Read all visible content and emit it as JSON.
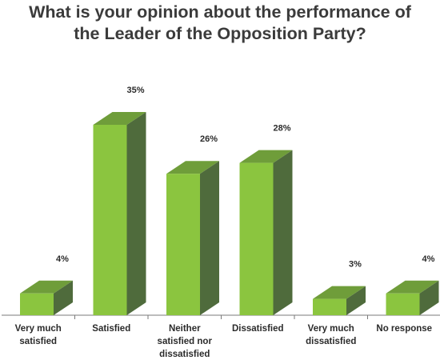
{
  "chart_data": {
    "type": "bar",
    "title_lines": [
      "What is your opinion about the performance of",
      "the Leader of the Opposition Party?"
    ],
    "categories": [
      [
        "Very much",
        "satisfied"
      ],
      [
        "Satisfied"
      ],
      [
        "Neither",
        "satisfied nor",
        "dissatisfied"
      ],
      [
        "Dissatisfied"
      ],
      [
        "Very much",
        "dissatisfied"
      ],
      [
        "No response"
      ]
    ],
    "values": [
      4,
      35,
      26,
      28,
      3,
      4
    ],
    "value_labels": [
      "4%",
      "35%",
      "26%",
      "28%",
      "3%",
      "4%"
    ],
    "ylim": [
      0,
      35
    ],
    "grid": false,
    "colors": {
      "front": "#8bc53f",
      "top": "#6f9d3a",
      "side": "#4f6b3c",
      "axis": "#7a7a7a",
      "text": "#2b2b2b",
      "title": "#3b3b3b"
    }
  }
}
